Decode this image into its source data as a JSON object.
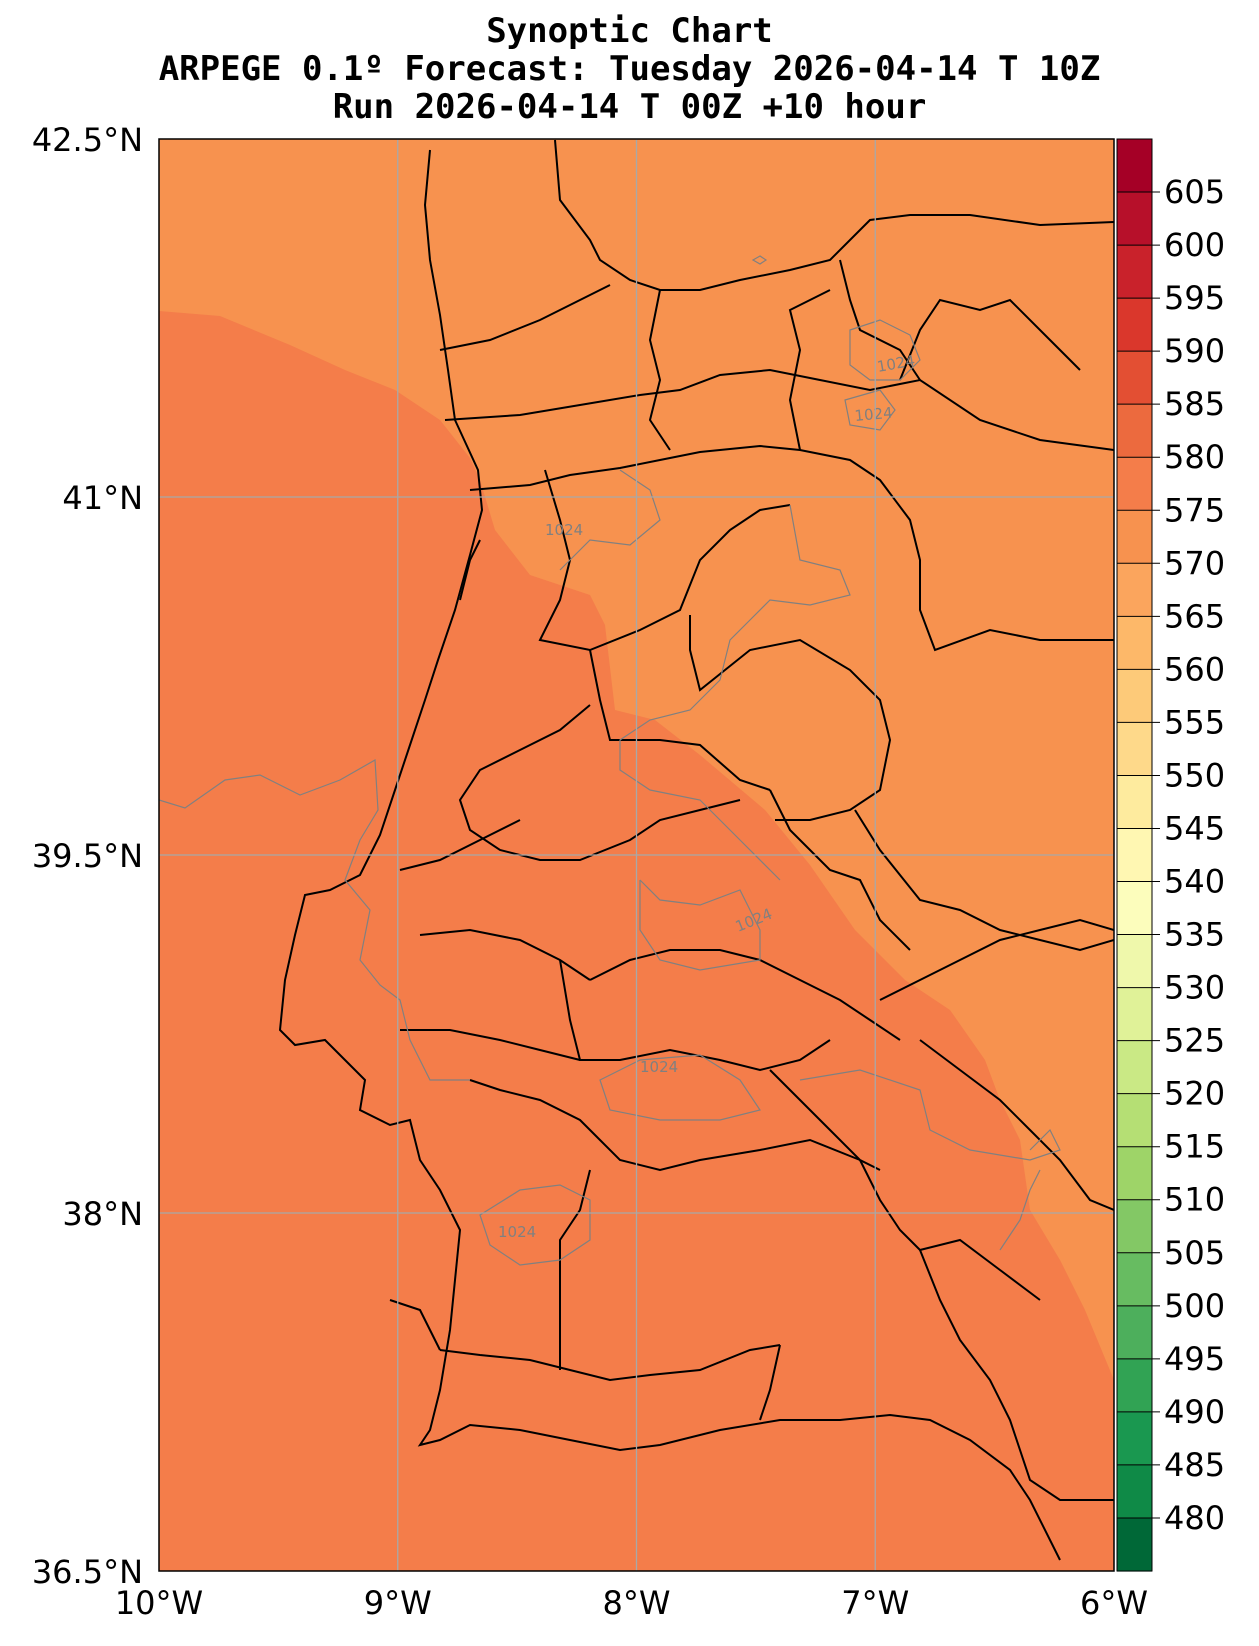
{
  "title": {
    "line1": "Synoptic Chart",
    "line2": "ARPEGE 0.1º Forecast: Tuesday 2026-04-14 T 10Z",
    "line3": "Run 2026-04-14 T 00Z +10 hour"
  },
  "axes": {
    "lat_labels": [
      "42.5°N",
      "41°N",
      "39.5°N",
      "38°N",
      "36.5°N"
    ],
    "lon_labels": [
      "10°W",
      "9°W",
      "8°W",
      "7°W",
      "6°W"
    ],
    "lat_range": [
      36.5,
      42.5
    ],
    "lon_range": [
      -10,
      -6
    ],
    "grid": true
  },
  "colorbar": {
    "ticks": [
      "605",
      "600",
      "595",
      "590",
      "585",
      "580",
      "575",
      "570",
      "565",
      "560",
      "555",
      "550",
      "545",
      "540",
      "535",
      "530",
      "525",
      "520",
      "515",
      "510",
      "505",
      "500",
      "495",
      "490",
      "485",
      "480"
    ],
    "colors": [
      "#a50026",
      "#b7102a",
      "#c9222b",
      "#da372c",
      "#e34f33",
      "#ec6a3e",
      "#f47d4a",
      "#f7924f",
      "#fba55d",
      "#fdb869",
      "#fdca79",
      "#fed98a",
      "#feeb9e",
      "#fff7b2",
      "#fcfdbc",
      "#eff8ab",
      "#e0f298",
      "#cae985",
      "#b5df74",
      "#9ed468",
      "#83c865",
      "#67bc61",
      "#4daf5c",
      "#31a354",
      "#1a9850",
      "#0f8a47",
      "#006837"
    ]
  },
  "isobars": {
    "labels": [
      "1024",
      "1024",
      "1024",
      "1024",
      "1024",
      "1024"
    ],
    "color": "#808080"
  },
  "fields": {
    "warm_color": "#f47d4a",
    "cool_color": "#f7924f"
  }
}
